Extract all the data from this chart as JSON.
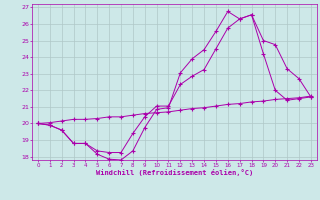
{
  "xlabel": "Windchill (Refroidissement éolien,°C)",
  "bg_color": "#cde8e8",
  "grid_color": "#b0c8c8",
  "line_color": "#aa00aa",
  "xlim": [
    -0.5,
    23.5
  ],
  "ylim": [
    17.8,
    27.2
  ],
  "xticks": [
    0,
    1,
    2,
    3,
    4,
    5,
    6,
    7,
    8,
    9,
    10,
    11,
    12,
    13,
    14,
    15,
    16,
    17,
    18,
    19,
    20,
    21,
    22,
    23
  ],
  "yticks": [
    18,
    19,
    20,
    21,
    22,
    23,
    24,
    25,
    26,
    27
  ],
  "x": [
    0,
    1,
    2,
    3,
    4,
    5,
    6,
    7,
    8,
    9,
    10,
    11,
    12,
    13,
    14,
    15,
    16,
    17,
    18,
    19,
    20,
    21,
    22,
    23
  ],
  "line1_y": [
    20.0,
    19.9,
    19.6,
    18.8,
    18.8,
    18.15,
    17.85,
    17.8,
    18.35,
    19.75,
    20.85,
    20.95,
    23.05,
    23.9,
    24.45,
    25.55,
    26.75,
    26.3,
    26.55,
    25.0,
    24.75,
    23.3,
    22.7,
    21.6
  ],
  "line2_y": [
    20.0,
    19.9,
    19.6,
    18.8,
    18.8,
    18.35,
    18.25,
    18.25,
    19.4,
    20.4,
    21.05,
    21.05,
    22.35,
    22.85,
    23.25,
    24.5,
    25.75,
    26.3,
    26.55,
    24.2,
    22.0,
    21.4,
    21.5,
    21.6
  ],
  "line3_y": [
    20.0,
    20.05,
    20.15,
    20.25,
    20.25,
    20.3,
    20.4,
    20.4,
    20.5,
    20.6,
    20.65,
    20.7,
    20.8,
    20.9,
    20.95,
    21.05,
    21.15,
    21.2,
    21.3,
    21.35,
    21.45,
    21.5,
    21.55,
    21.65
  ]
}
